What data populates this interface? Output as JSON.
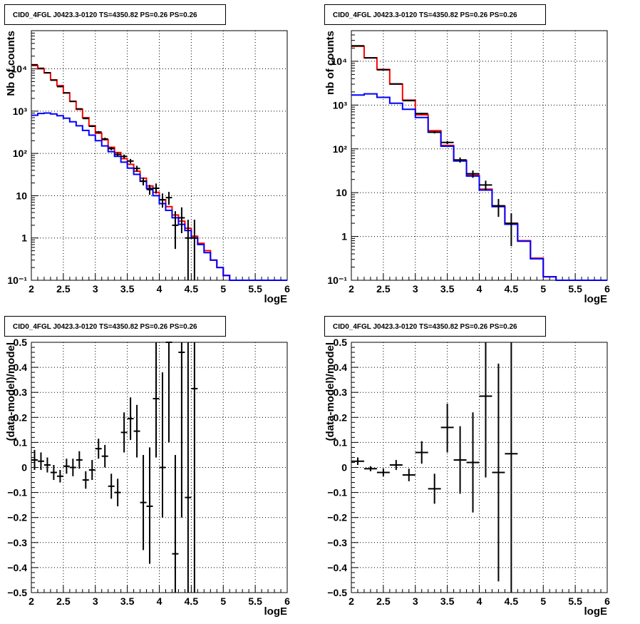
{
  "chart_data": [
    {
      "type": "line",
      "panel": "top-left",
      "title": "CID0_4FGL J0423.3-0120 TS=4350.82 PS=0.26 PS=0.26",
      "xlabel": "logE",
      "ylabel": "Nb of counts",
      "xlim": [
        2,
        6
      ],
      "ylim": [
        0.1,
        80000
      ],
      "yscale": "log",
      "xticks": [
        "2",
        "2.5",
        "3",
        "3.5",
        "4",
        "4.5",
        "5",
        "5.5",
        "6"
      ],
      "yticks": [
        "10⁻¹",
        "1",
        "10",
        "10²",
        "10³",
        "10⁴"
      ],
      "grid": true,
      "series": [
        {
          "style": "step",
          "color": "#ff0000",
          "edges": [
            2.0,
            2.1,
            2.2,
            2.3,
            2.4,
            2.5,
            2.6,
            2.7,
            2.8,
            2.9,
            3.0,
            3.1,
            3.2,
            3.3,
            3.4,
            3.5,
            3.6,
            3.7,
            3.8,
            3.9,
            4.0,
            4.1,
            4.2,
            4.3,
            4.4,
            4.5,
            4.6,
            4.7,
            4.8,
            4.9,
            5.0,
            5.1,
            5.2,
            5.3,
            5.4,
            5.5,
            5.6,
            5.7,
            5.8,
            5.9,
            6.0
          ],
          "values": [
            12000,
            10000,
            8000,
            5500,
            4000,
            2700,
            1700,
            1100,
            700,
            450,
            300,
            210,
            140,
            105,
            75,
            55,
            38,
            26,
            17,
            12,
            8,
            5.5,
            3.5,
            2.5,
            1.7,
            1.1,
            0.75,
            0.5,
            0.3,
            0.2,
            0.13,
            0.1,
            0.1,
            0.1,
            0.1,
            0.1,
            0.1,
            0.1,
            0.1,
            0.1
          ]
        },
        {
          "style": "step",
          "color": "#0000ff",
          "edges": [
            2.0,
            2.1,
            2.2,
            2.3,
            2.4,
            2.5,
            2.6,
            2.7,
            2.8,
            2.9,
            3.0,
            3.1,
            3.2,
            3.3,
            3.4,
            3.5,
            3.6,
            3.7,
            3.8,
            3.9,
            4.0,
            4.1,
            4.2,
            4.3,
            4.4,
            4.5,
            4.6,
            4.7,
            4.8,
            4.9,
            5.0,
            5.1,
            5.2,
            5.3,
            5.4,
            5.5,
            5.6,
            5.7,
            5.8,
            5.9,
            6.0
          ],
          "values": [
            800,
            880,
            900,
            860,
            780,
            680,
            560,
            450,
            350,
            270,
            200,
            150,
            110,
            85,
            62,
            45,
            32,
            22,
            15,
            10,
            6.5,
            4.5,
            3,
            2.1,
            1.5,
            1,
            0.7,
            0.45,
            0.3,
            0.2,
            0.13,
            0.1,
            0.1,
            0.1,
            0.1,
            0.1,
            0.1,
            0.1,
            0.1,
            0.1
          ]
        },
        {
          "style": "errorbar",
          "color": "#000000",
          "x": [
            2.05,
            2.15,
            2.25,
            2.35,
            2.45,
            2.55,
            2.65,
            2.75,
            2.85,
            2.95,
            3.05,
            3.15,
            3.25,
            3.35,
            3.45,
            3.55,
            3.65,
            3.75,
            3.85,
            3.95,
            4.05,
            4.15,
            4.25,
            4.35,
            4.45,
            4.55
          ],
          "xerr": 0.05,
          "y": [
            12500,
            10300,
            8100,
            5400,
            3800,
            2700,
            1700,
            1130,
            670,
            440,
            320,
            220,
            130,
            95,
            85,
            66,
            44,
            22,
            14,
            15,
            8,
            9,
            2,
            3,
            1,
            1
          ],
          "ylow": [
            12390,
            10200,
            8010,
            5330,
            3740,
            2650,
            1660,
            1100,
            645,
            420,
            302,
            205,
            119,
            86,
            76,
            58,
            37,
            17.5,
            10.5,
            11.2,
            5.2,
            6.1,
            0.55,
            1.3,
            0.1,
            0.1
          ],
          "yhigh": [
            12610,
            10400,
            8190,
            5470,
            3860,
            2750,
            1740,
            1160,
            695,
            461,
            338,
            235,
            141,
            104,
            94,
            74,
            51,
            27,
            18,
            19.4,
            11.3,
            12.3,
            4.3,
            5.3,
            2.7,
            2.7
          ]
        }
      ]
    },
    {
      "type": "line",
      "panel": "top-right",
      "title": "CID0_4FGL J0423.3-0120 TS=4350.82 PS=0.26 PS=0.26",
      "xlabel": "logE",
      "ylabel": "nb of counts",
      "xlim": [
        2,
        6
      ],
      "ylim": [
        0.1,
        50000
      ],
      "yscale": "log",
      "xticks": [
        "2",
        "2.5",
        "3",
        "3.5",
        "4",
        "4.5",
        "5",
        "5.5",
        "6"
      ],
      "yticks": [
        "10⁻¹",
        "1",
        "10",
        "10²",
        "10³",
        "10⁴"
      ],
      "grid": true,
      "series": [
        {
          "style": "step",
          "color": "#ff0000",
          "edges": [
            2.0,
            2.2,
            2.4,
            2.6,
            2.8,
            3.0,
            3.2,
            3.4,
            3.6,
            3.8,
            4.0,
            4.2,
            4.4,
            4.6,
            4.8,
            5.0,
            5.2,
            5.4,
            5.6,
            5.8,
            6.0
          ],
          "values": [
            22000,
            12000,
            6500,
            3000,
            1300,
            600,
            260,
            120,
            55,
            25,
            12,
            5,
            2,
            0.8,
            0.32,
            0.12,
            0.1,
            0.1,
            0.1,
            0.1
          ]
        },
        {
          "style": "step",
          "color": "#0000ff",
          "edges": [
            2.0,
            2.2,
            2.4,
            2.6,
            2.8,
            3.0,
            3.2,
            3.4,
            3.6,
            3.8,
            4.0,
            4.2,
            4.4,
            4.6,
            4.8,
            5.0,
            5.2,
            5.4,
            5.6,
            5.8,
            6.0
          ],
          "values": [
            1700,
            1800,
            1500,
            1100,
            800,
            520,
            240,
            115,
            53,
            24,
            11.5,
            4.8,
            1.9,
            0.78,
            0.31,
            0.12,
            0.1,
            0.1,
            0.1,
            0.1
          ]
        },
        {
          "style": "errorbar",
          "color": "#000000",
          "x": [
            2.1,
            2.3,
            2.5,
            2.7,
            2.9,
            3.1,
            3.3,
            3.5,
            3.7,
            3.9,
            4.1,
            4.3,
            4.5
          ],
          "xerr": 0.1,
          "y": [
            22500,
            12000,
            6400,
            3050,
            1260,
            640,
            240,
            140,
            56,
            27,
            15,
            5,
            2
          ],
          "ylow": [
            22350,
            11890,
            6320,
            2995,
            1225,
            615,
            225,
            128,
            48.5,
            21.8,
            11.2,
            2.8,
            0.6
          ],
          "yhigh": [
            22650,
            12110,
            6480,
            3105,
            1295,
            665,
            255,
            152,
            63.5,
            32.2,
            18.8,
            7.2,
            3.4
          ]
        }
      ]
    },
    {
      "type": "scatter",
      "panel": "bottom-left",
      "title": "CID0_4FGL J0423.3-0120 TS=4350.82 PS=0.26 PS=0.26",
      "xlabel": "logE",
      "ylabel": "(data-model)/model",
      "xlim": [
        2,
        6
      ],
      "ylim": [
        -0.5,
        0.5
      ],
      "xticks": [
        "2",
        "2.5",
        "3",
        "3.5",
        "4",
        "4.5",
        "5",
        "5.5",
        "6"
      ],
      "yticks": [
        "−0.5",
        "−0.4",
        "−0.3",
        "−0.2",
        "−0.1",
        "0",
        "0.1",
        "0.2",
        "0.3",
        "0.4",
        "0.5"
      ],
      "grid": true,
      "series": [
        {
          "style": "errorbar",
          "color": "#000000",
          "x": [
            2.05,
            2.15,
            2.25,
            2.35,
            2.45,
            2.55,
            2.65,
            2.75,
            2.85,
            2.95,
            3.05,
            3.15,
            3.25,
            3.35,
            3.45,
            3.55,
            3.65,
            3.75,
            3.85,
            3.95,
            4.05,
            4.15,
            4.25,
            4.35,
            4.45,
            4.55
          ],
          "xerr": 0.05,
          "y": [
            0.03,
            0.025,
            0.01,
            -0.02,
            -0.035,
            0.005,
            0.0,
            0.03,
            -0.05,
            -0.01,
            0.075,
            0.045,
            -0.075,
            -0.1,
            0.14,
            0.195,
            0.145,
            -0.14,
            -0.155,
            0.275,
            0.0,
            0.5,
            -0.345,
            0.46,
            -0.12,
            0.315
          ],
          "ylow": [
            -0.01,
            -0.01,
            -0.02,
            -0.05,
            -0.06,
            -0.025,
            -0.035,
            -0.005,
            -0.085,
            -0.05,
            0.035,
            0.0,
            -0.125,
            -0.155,
            0.06,
            0.11,
            0.04,
            -0.33,
            -0.385,
            0.04,
            -0.2,
            0.1,
            -0.9,
            -0.2,
            -0.9,
            -0.9
          ],
          "yhigh": [
            0.07,
            0.06,
            0.04,
            0.01,
            -0.01,
            0.035,
            0.035,
            0.065,
            -0.015,
            0.03,
            0.115,
            0.09,
            -0.025,
            -0.045,
            0.22,
            0.28,
            0.25,
            0.05,
            0.08,
            0.51,
            0.38,
            0.9,
            0.05,
            0.9,
            0.9,
            0.9
          ]
        }
      ]
    },
    {
      "type": "scatter",
      "panel": "bottom-right",
      "title": "CID0_4FGL J0423.3-0120 TS=4350.82 PS=0.26 PS=0.26",
      "xlabel": "logE",
      "ylabel": "(data-model)/model",
      "xlim": [
        2,
        6
      ],
      "ylim": [
        -0.5,
        0.5
      ],
      "xticks": [
        "2",
        "2.5",
        "3",
        "3.5",
        "4",
        "4.5",
        "5",
        "5.5",
        "6"
      ],
      "yticks": [
        "−0.5",
        "−0.4",
        "−0.3",
        "−0.2",
        "−0.1",
        "0",
        "0.1",
        "0.2",
        "0.3",
        "0.4",
        "0.5"
      ],
      "grid": true,
      "series": [
        {
          "style": "errorbar",
          "color": "#000000",
          "x": [
            2.1,
            2.3,
            2.5,
            2.7,
            2.9,
            3.1,
            3.3,
            3.5,
            3.7,
            3.9,
            4.1,
            4.3,
            4.5
          ],
          "xerr": 0.1,
          "y": [
            0.025,
            -0.005,
            -0.02,
            0.01,
            -0.03,
            0.06,
            -0.085,
            0.16,
            0.03,
            0.02,
            0.285,
            -0.02,
            0.055
          ],
          "ylow": [
            0.01,
            -0.015,
            -0.035,
            -0.01,
            -0.055,
            0.015,
            -0.145,
            0.06,
            -0.105,
            -0.18,
            -0.04,
            -0.455,
            -0.9
          ],
          "yhigh": [
            0.04,
            0.005,
            -0.005,
            0.03,
            -0.005,
            0.105,
            -0.025,
            0.255,
            0.165,
            0.22,
            0.51,
            0.415,
            0.9
          ]
        }
      ]
    }
  ]
}
